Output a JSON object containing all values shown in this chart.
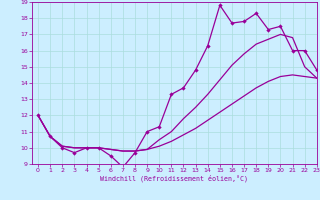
{
  "bg_color": "#cceeff",
  "line_color": "#990099",
  "grid_color": "#aadddd",
  "spiky_x": [
    0,
    1,
    2,
    3,
    4,
    5,
    6,
    7,
    8,
    9,
    10,
    11,
    12,
    13,
    14,
    15,
    16,
    17,
    18,
    19,
    20,
    21,
    22,
    23
  ],
  "spiky_y": [
    12.0,
    10.7,
    10.0,
    9.7,
    10.0,
    10.0,
    9.5,
    8.8,
    9.7,
    11.0,
    11.3,
    13.3,
    13.7,
    14.8,
    16.3,
    18.8,
    17.7,
    17.8,
    18.3,
    17.3,
    17.5,
    16.0,
    16.0,
    14.8
  ],
  "diag_low_x": [
    0,
    1,
    2,
    3,
    4,
    5,
    6,
    7,
    8,
    9,
    10,
    11,
    12,
    13,
    14,
    15,
    16,
    17,
    18,
    19,
    20,
    21,
    22,
    23
  ],
  "diag_low_y": [
    12.0,
    10.7,
    10.1,
    10.0,
    10.0,
    10.0,
    9.9,
    9.8,
    9.8,
    9.9,
    10.1,
    10.4,
    10.8,
    11.2,
    11.7,
    12.2,
    12.7,
    13.2,
    13.7,
    14.1,
    14.4,
    14.5,
    14.4,
    14.3
  ],
  "diag_mid_x": [
    0,
    1,
    2,
    3,
    4,
    5,
    6,
    7,
    8,
    9,
    10,
    11,
    12,
    13,
    14,
    15,
    16,
    17,
    18,
    19,
    20,
    21,
    22,
    23
  ],
  "diag_mid_y": [
    12.0,
    10.7,
    10.1,
    10.0,
    10.0,
    10.0,
    9.9,
    9.8,
    9.8,
    9.9,
    10.5,
    11.0,
    11.8,
    12.5,
    13.3,
    14.2,
    15.1,
    15.8,
    16.4,
    16.7,
    17.0,
    16.8,
    15.0,
    14.3
  ],
  "xlabel": "Windchill (Refroidissement éolien,°C)",
  "ylim": [
    9,
    19
  ],
  "xlim": [
    -0.5,
    23
  ],
  "yticks": [
    9,
    10,
    11,
    12,
    13,
    14,
    15,
    16,
    17,
    18,
    19
  ],
  "xticks": [
    0,
    1,
    2,
    3,
    4,
    5,
    6,
    7,
    8,
    9,
    10,
    11,
    12,
    13,
    14,
    15,
    16,
    17,
    18,
    19,
    20,
    21,
    22,
    23
  ]
}
